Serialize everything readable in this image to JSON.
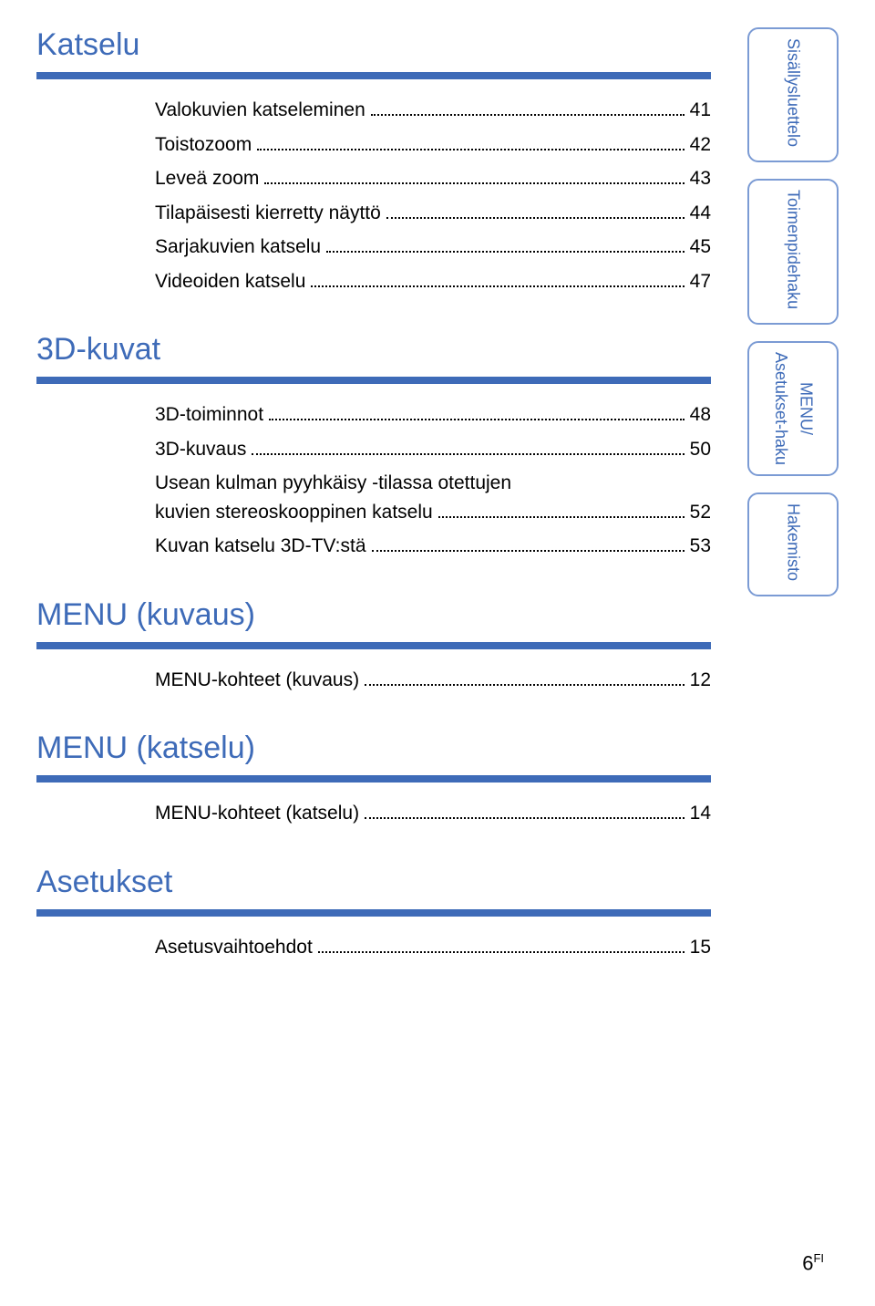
{
  "colors": {
    "accent": "#3e6bb8",
    "tab_border": "#7b9bd4",
    "text": "#000000",
    "bg": "#ffffff"
  },
  "sections": {
    "katselu": {
      "title": "Katselu",
      "items": [
        {
          "label": "Valokuvien katseleminen",
          "page": "41"
        },
        {
          "label": "Toistozoom",
          "page": "42"
        },
        {
          "label": "Leveä zoom",
          "page": "43"
        },
        {
          "label": "Tilapäisesti kierretty näyttö",
          "page": "44"
        },
        {
          "label": "Sarjakuvien katselu",
          "page": "45"
        },
        {
          "label": "Videoiden katselu",
          "page": "47"
        }
      ]
    },
    "kuvat3d": {
      "title": "3D-kuvat",
      "items": [
        {
          "label": "3D-toiminnot",
          "page": "48"
        },
        {
          "label": "3D-kuvaus",
          "page": "50"
        }
      ],
      "multiline": {
        "line1": "Usean kulman pyyhkäisy -tilassa otettujen",
        "line2": "kuvien stereoskooppinen katselu",
        "page": "52"
      },
      "last": {
        "label": "Kuvan katselu 3D-TV:stä",
        "page": "53"
      }
    },
    "menu_kuvaus": {
      "title": "MENU (kuvaus)",
      "items": [
        {
          "label": "MENU-kohteet (kuvaus)",
          "page": "12"
        }
      ]
    },
    "menu_katselu": {
      "title": "MENU (katselu)",
      "items": [
        {
          "label": "MENU-kohteet (katselu)",
          "page": "14"
        }
      ]
    },
    "asetukset": {
      "title": "Asetukset",
      "items": [
        {
          "label": "Asetusvaihtoehdot",
          "page": "15"
        }
      ]
    }
  },
  "tabs": {
    "sisallys": "Sisällysluettelo",
    "toimenpide": "Toimenpidehaku",
    "menu_line1": "MENU/",
    "menu_line2": "Asetukset-haku",
    "hakemisto": "Hakemisto"
  },
  "footer": {
    "page": "6",
    "suffix": "FI"
  }
}
